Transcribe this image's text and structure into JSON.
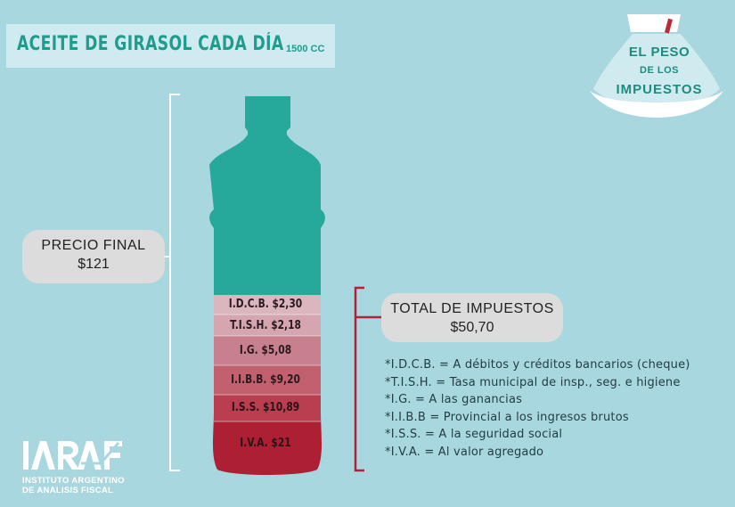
{
  "title": "ACEITE DE GIRASOL CADA DÍA",
  "title_size": "1500 CC",
  "logo": {
    "line1": "EL PESO",
    "line2": "DE LOS",
    "line3": "IMPUESTOS"
  },
  "precio_final": {
    "label": "PRECIO FINAL",
    "value": "$121"
  },
  "total_impuestos": {
    "label": "TOTAL DE IMPUESTOS",
    "value": "$50,70"
  },
  "segments": [
    {
      "label": "I.D.C.B. $2,30",
      "color": "#dcb6bf"
    },
    {
      "label": "T.I.S.H. $2,18",
      "color": "#d6a6b0"
    },
    {
      "label": "I.G. $5,08",
      "color": "#c9808e"
    },
    {
      "label": "I.I.B.B. $9,20",
      "color": "#c2606f"
    },
    {
      "label": "I.S.S. $10,89",
      "color": "#b93e4f"
    },
    {
      "label": "I.V.A. $21",
      "color": "#ad1f33"
    }
  ],
  "bottle_color": "#26a89a",
  "notes": [
    "*I.D.C.B. = A débitos y créditos bancarios (cheque)",
    "*T.I.S.H. = Tasa municipal de insp., seg. e higiene",
    "*I.G. = A las ganancias",
    "*I.I.B.B = Provincial a los ingresos brutos",
    "*I.S.S. = A la seguridad social",
    "*I.V.A. = Al valor agregado"
  ],
  "org": {
    "logo": "IARAF",
    "line1": "INSTITUTO ARGENTINO",
    "line2": "DE ANALISIS FISCAL"
  }
}
